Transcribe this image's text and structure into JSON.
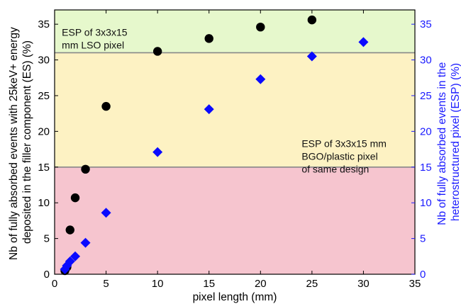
{
  "chart_data": {
    "type": "scatter",
    "xlabel": "pixel length (mm)",
    "ylabel_left": [
      "Nb of fully absorbed events with 25keV+ energy",
      "deposited in the filler component (ES) (%)"
    ],
    "ylabel_right": [
      "Nb of fully absorbed events in the",
      "heterostructured pixel (ESP) (%)"
    ],
    "xlim": [
      0,
      35
    ],
    "ylim": [
      0,
      37
    ],
    "xticks": [
      "0",
      "5",
      "10",
      "15",
      "20",
      "25",
      "30",
      "35"
    ],
    "yticks": [
      "0",
      "5",
      "10",
      "15",
      "20",
      "25",
      "30",
      "35"
    ],
    "colors": {
      "band_top": "#e6f8cc",
      "band_mid": "#fdf2c3",
      "band_low": "#f6c5cf",
      "series_es": "#000000",
      "series_esp": "#0a0aff",
      "right_axis": "#1a1aff"
    },
    "bands": [
      {
        "from": 31,
        "to": 37,
        "color": "#e6f8cc"
      },
      {
        "from": 15,
        "to": 31,
        "color": "#fdf2c3"
      },
      {
        "from": 0,
        "to": 15,
        "color": "#f6c5cf"
      }
    ],
    "band_lines": [
      31,
      15
    ],
    "annotations": [
      {
        "lines": [
          "ESP of 3x3x15",
          "mm LSO pixel"
        ],
        "x": 0.7,
        "y": 33.4
      },
      {
        "lines": [
          "ESP of 3x3x15 mm",
          "BGO/plastic pixel",
          "of same design"
        ],
        "x": 24.0,
        "y": 17.8
      }
    ],
    "series": [
      {
        "marker": "circle",
        "color": "#000000",
        "axis": "left",
        "x": [
          1,
          1.2,
          1.5,
          2,
          3,
          5,
          10,
          15,
          20,
          25
        ],
        "y": [
          0.5,
          1.0,
          6.2,
          10.7,
          14.7,
          23.5,
          31.2,
          33.0,
          34.6,
          35.6
        ]
      },
      {
        "marker": "diamond",
        "color": "#0a0aff",
        "axis": "right",
        "x": [
          1,
          1.2,
          1.5,
          2,
          3,
          5,
          10,
          15,
          20,
          25,
          30
        ],
        "y": [
          0.7,
          1.2,
          1.8,
          2.5,
          4.4,
          8.6,
          17.1,
          23.1,
          27.3,
          30.5,
          32.5
        ]
      }
    ]
  }
}
